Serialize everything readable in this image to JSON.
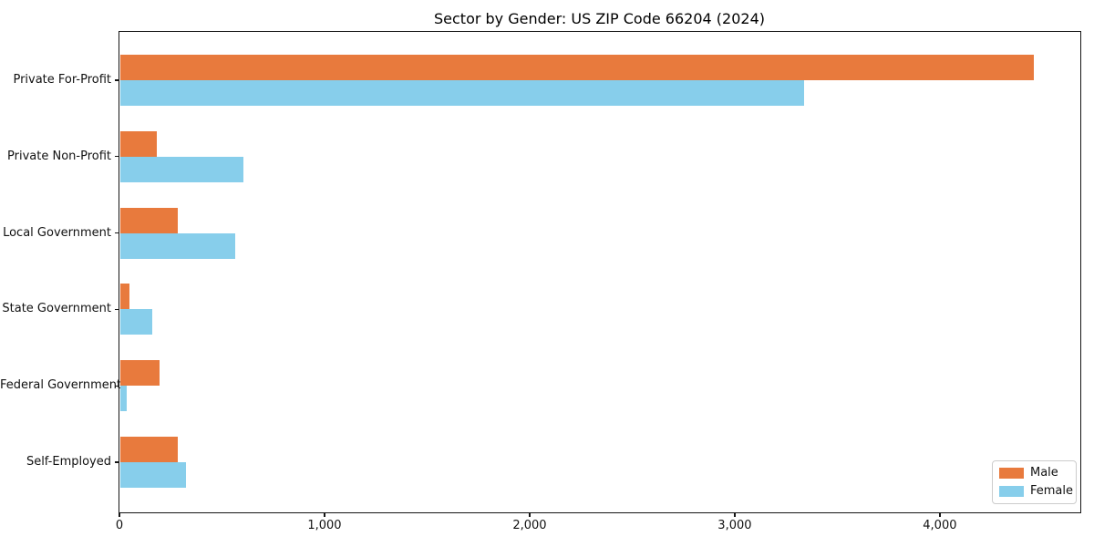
{
  "chart_data": {
    "type": "bar",
    "orientation": "horizontal",
    "title": "Sector by Gender: US ZIP Code 66204 (2024)",
    "categories": [
      "Private For-Profit",
      "Private Non-Profit",
      "Local Government",
      "State Government",
      "Federal Government",
      "Self-Employed"
    ],
    "series": [
      {
        "name": "Male",
        "color": "#e87a3d",
        "values": [
          4460,
          182,
          285,
          50,
          196,
          285
        ]
      },
      {
        "name": "Female",
        "color": "#87ceeb",
        "values": [
          3340,
          604,
          565,
          160,
          36,
          325
        ]
      }
    ],
    "xlabel": "",
    "ylabel": "",
    "xlim": [
      0,
      4685
    ],
    "xticks": {
      "values": [
        0,
        1000,
        2000,
        3000,
        4000
      ],
      "labels": [
        "0",
        "1,000",
        "2,000",
        "3,000",
        "4,000"
      ]
    },
    "legend": {
      "position": "lower right",
      "entries": [
        "Male",
        "Female"
      ]
    },
    "grid": false,
    "plot_background": "#ffffff",
    "spine_color": "#151515"
  }
}
